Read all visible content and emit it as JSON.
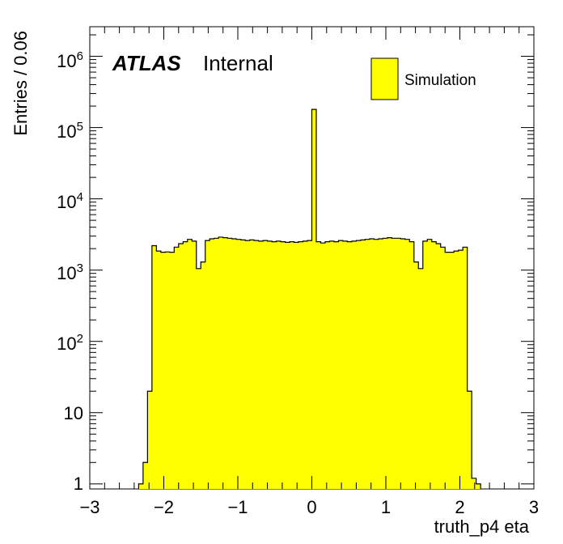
{
  "chart_data": {
    "type": "bar",
    "subtype": "histogram",
    "xlabel": "truth_p4 eta",
    "ylabel": "Entries / 0.06",
    "x_ticks": [
      "−3",
      "−2",
      "−1",
      "0",
      "1",
      "2",
      "3"
    ],
    "y_ticks": [
      {
        "base": "1",
        "exp": ""
      },
      {
        "base": "10",
        "exp": ""
      },
      {
        "base": "10",
        "exp": "2"
      },
      {
        "base": "10",
        "exp": "3"
      },
      {
        "base": "10",
        "exp": "4"
      },
      {
        "base": "10",
        "exp": "5"
      },
      {
        "base": "10",
        "exp": "6"
      }
    ],
    "xlim": [
      -3,
      3
    ],
    "ylim": [
      0.85,
      2600000
    ],
    "log_y": true,
    "bin_width": 0.06,
    "bins": [
      [
        -2.34,
        -2.28,
        1
      ],
      [
        -2.28,
        -2.22,
        2
      ],
      [
        -2.22,
        -2.16,
        20
      ],
      [
        -2.16,
        -2.1,
        2200
      ],
      [
        -2.1,
        -2.04,
        1850
      ],
      [
        -2.04,
        -1.98,
        1780
      ],
      [
        -1.98,
        -1.92,
        1800
      ],
      [
        -1.92,
        -1.86,
        1780
      ],
      [
        -1.86,
        -1.8,
        2100
      ],
      [
        -1.8,
        -1.74,
        2350
      ],
      [
        -1.74,
        -1.68,
        2500
      ],
      [
        -1.68,
        -1.62,
        2700
      ],
      [
        -1.62,
        -1.56,
        2550
      ],
      [
        -1.56,
        -1.5,
        1050
      ],
      [
        -1.5,
        -1.44,
        1300
      ],
      [
        -1.44,
        -1.38,
        2600
      ],
      [
        -1.38,
        -1.32,
        2750
      ],
      [
        -1.32,
        -1.26,
        2800
      ],
      [
        -1.26,
        -1.2,
        2900
      ],
      [
        -1.2,
        -1.14,
        2850
      ],
      [
        -1.14,
        -1.08,
        2800
      ],
      [
        -1.08,
        -1.02,
        2750
      ],
      [
        -1.02,
        -0.96,
        2700
      ],
      [
        -0.96,
        -0.9,
        2650
      ],
      [
        -0.9,
        -0.84,
        2600
      ],
      [
        -0.84,
        -0.78,
        2650
      ],
      [
        -0.78,
        -0.72,
        2600
      ],
      [
        -0.72,
        -0.66,
        2550
      ],
      [
        -0.66,
        -0.6,
        2600
      ],
      [
        -0.6,
        -0.54,
        2550
      ],
      [
        -0.54,
        -0.48,
        2500
      ],
      [
        -0.48,
        -0.42,
        2550
      ],
      [
        -0.42,
        -0.36,
        2500
      ],
      [
        -0.36,
        -0.3,
        2450
      ],
      [
        -0.3,
        -0.24,
        2500
      ],
      [
        -0.24,
        -0.18,
        2450
      ],
      [
        -0.18,
        -0.12,
        2500
      ],
      [
        -0.12,
        -0.06,
        2550
      ],
      [
        -0.06,
        0.0,
        2600
      ],
      [
        0.0,
        0.06,
        180000
      ],
      [
        0.06,
        0.12,
        2500
      ],
      [
        0.12,
        0.18,
        2400
      ],
      [
        0.18,
        0.24,
        2500
      ],
      [
        0.24,
        0.3,
        2550
      ],
      [
        0.3,
        0.36,
        2500
      ],
      [
        0.36,
        0.42,
        2600
      ],
      [
        0.42,
        0.48,
        2550
      ],
      [
        0.48,
        0.54,
        2500
      ],
      [
        0.54,
        0.6,
        2550
      ],
      [
        0.6,
        0.66,
        2600
      ],
      [
        0.66,
        0.72,
        2650
      ],
      [
        0.72,
        0.78,
        2700
      ],
      [
        0.78,
        0.84,
        2750
      ],
      [
        0.84,
        0.9,
        2700
      ],
      [
        0.9,
        0.96,
        2750
      ],
      [
        0.96,
        1.02,
        2800
      ],
      [
        1.02,
        1.08,
        2850
      ],
      [
        1.08,
        1.14,
        2800
      ],
      [
        1.14,
        1.2,
        2800
      ],
      [
        1.2,
        1.26,
        2750
      ],
      [
        1.26,
        1.32,
        2700
      ],
      [
        1.32,
        1.38,
        2500
      ],
      [
        1.38,
        1.44,
        1300
      ],
      [
        1.44,
        1.5,
        1050
      ],
      [
        1.5,
        1.56,
        2550
      ],
      [
        1.56,
        1.62,
        2700
      ],
      [
        1.62,
        1.68,
        2500
      ],
      [
        1.68,
        1.74,
        2350
      ],
      [
        1.74,
        1.8,
        2100
      ],
      [
        1.8,
        1.86,
        1780
      ],
      [
        1.86,
        1.92,
        1780
      ],
      [
        1.92,
        1.98,
        1850
      ],
      [
        1.98,
        2.04,
        1900
      ],
      [
        2.04,
        2.1,
        2100
      ],
      [
        2.1,
        2.16,
        20
      ],
      [
        2.16,
        2.22,
        1.2
      ],
      [
        2.22,
        2.28,
        1
      ]
    ],
    "legend": {
      "entries": [
        "Simulation"
      ],
      "placement": "top-right"
    },
    "fill_color": "#ffff00",
    "line_color": "#000000"
  },
  "annotation": {
    "atlas": "ATLAS",
    "internal": "Internal"
  }
}
